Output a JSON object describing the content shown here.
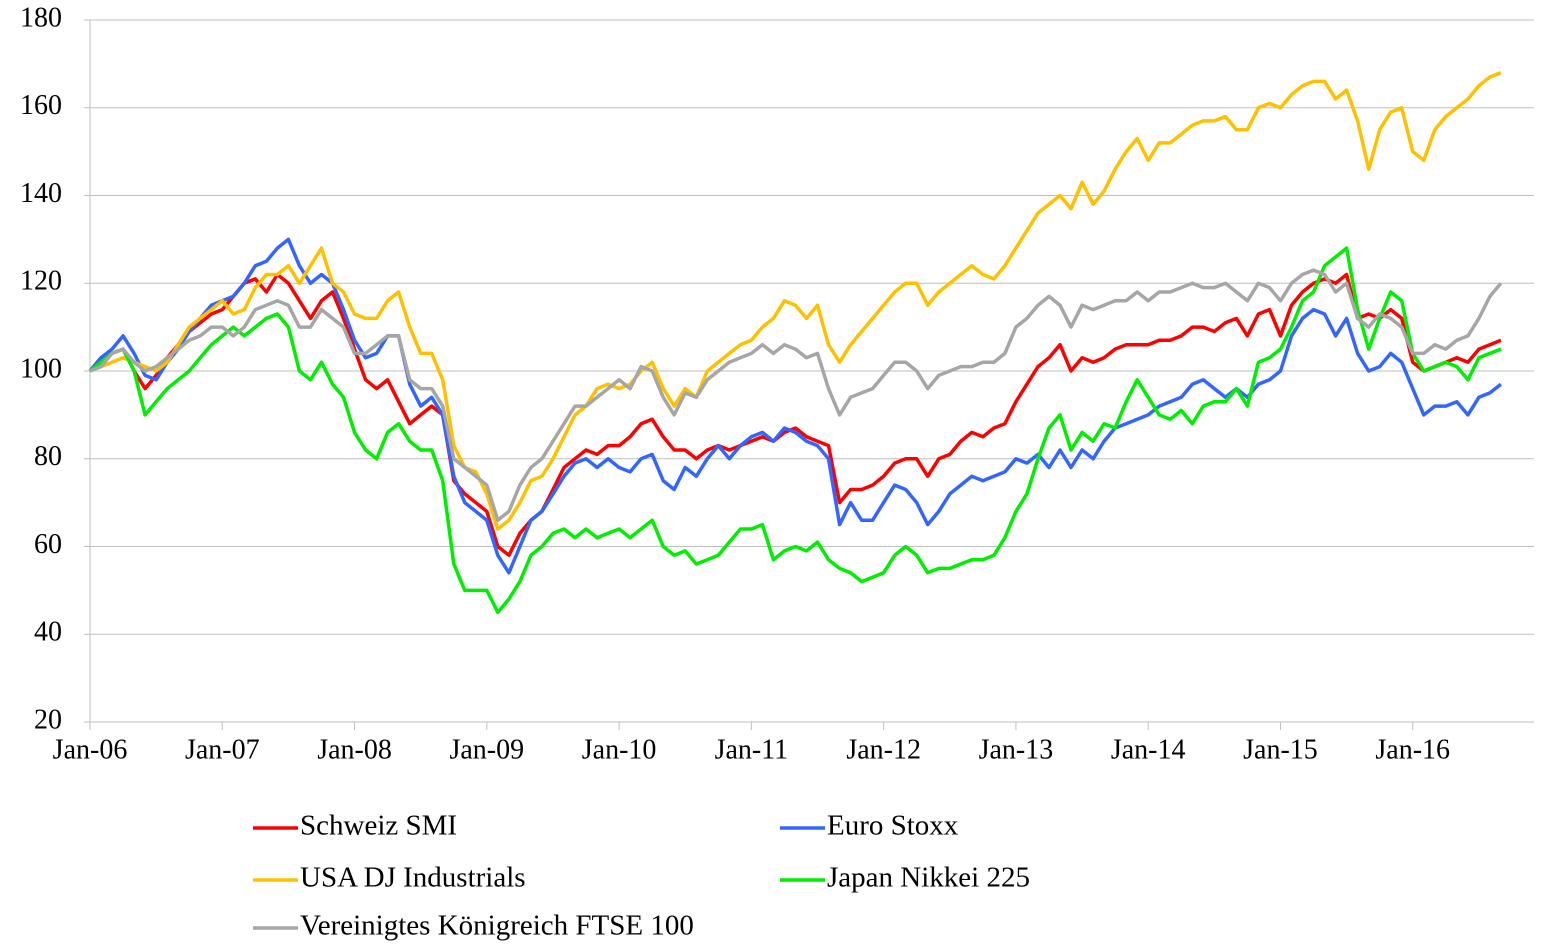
{
  "chart_data": {
    "type": "line",
    "x": [
      "2006-01",
      "2006-02",
      "2006-03",
      "2006-04",
      "2006-05",
      "2006-06",
      "2006-07",
      "2006-08",
      "2006-09",
      "2006-10",
      "2006-11",
      "2006-12",
      "2007-01",
      "2007-02",
      "2007-03",
      "2007-04",
      "2007-05",
      "2007-06",
      "2007-07",
      "2007-08",
      "2007-09",
      "2007-10",
      "2007-11",
      "2007-12",
      "2008-01",
      "2008-02",
      "2008-03",
      "2008-04",
      "2008-05",
      "2008-06",
      "2008-07",
      "2008-08",
      "2008-09",
      "2008-10",
      "2008-11",
      "2008-12",
      "2009-01",
      "2009-02",
      "2009-03",
      "2009-04",
      "2009-05",
      "2009-06",
      "2009-07",
      "2009-08",
      "2009-09",
      "2009-10",
      "2009-11",
      "2009-12",
      "2010-01",
      "2010-02",
      "2010-03",
      "2010-04",
      "2010-05",
      "2010-06",
      "2010-07",
      "2010-08",
      "2010-09",
      "2010-10",
      "2010-11",
      "2010-12",
      "2011-01",
      "2011-02",
      "2011-03",
      "2011-04",
      "2011-05",
      "2011-06",
      "2011-07",
      "2011-08",
      "2011-09",
      "2011-10",
      "2011-11",
      "2011-12",
      "2012-01",
      "2012-02",
      "2012-03",
      "2012-04",
      "2012-05",
      "2012-06",
      "2012-07",
      "2012-08",
      "2012-09",
      "2012-10",
      "2012-11",
      "2012-12",
      "2013-01",
      "2013-02",
      "2013-03",
      "2013-04",
      "2013-05",
      "2013-06",
      "2013-07",
      "2013-08",
      "2013-09",
      "2013-10",
      "2013-11",
      "2013-12",
      "2014-01",
      "2014-02",
      "2014-03",
      "2014-04",
      "2014-05",
      "2014-06",
      "2014-07",
      "2014-08",
      "2014-09",
      "2014-10",
      "2014-11",
      "2014-12",
      "2015-01",
      "2015-02",
      "2015-03",
      "2015-04",
      "2015-05",
      "2015-06",
      "2015-07",
      "2015-08",
      "2015-09",
      "2015-10",
      "2015-11",
      "2015-12",
      "2016-01",
      "2016-02",
      "2016-03",
      "2016-04",
      "2016-05",
      "2016-06",
      "2016-07",
      "2016-08",
      "2016-09"
    ],
    "series": [
      {
        "name": "Schweiz SMI",
        "color": "#ff0000",
        "values": [
          100,
          103,
          104,
          105,
          100,
          96,
          99,
          103,
          106,
          109,
          111,
          113,
          114,
          117,
          120,
          121,
          118,
          122,
          120,
          116,
          112,
          116,
          118,
          112,
          105,
          98,
          96,
          98,
          93,
          88,
          90,
          92,
          90,
          75,
          72,
          70,
          68,
          60,
          58,
          63,
          66,
          68,
          73,
          78,
          80,
          82,
          81,
          83,
          83,
          85,
          88,
          89,
          85,
          82,
          82,
          80,
          82,
          83,
          82,
          83,
          84,
          85,
          84,
          86,
          87,
          85,
          84,
          83,
          70,
          73,
          73,
          74,
          76,
          79,
          80,
          80,
          76,
          80,
          81,
          84,
          86,
          85,
          87,
          88,
          93,
          97,
          101,
          103,
          106,
          100,
          103,
          102,
          103,
          105,
          106,
          106,
          106,
          107,
          107,
          108,
          110,
          110,
          109,
          111,
          112,
          108,
          113,
          114,
          108,
          115,
          118,
          120,
          121,
          120,
          122,
          112,
          113,
          112,
          114,
          112,
          102,
          100,
          101,
          102,
          103,
          102,
          105,
          106,
          107
        ]
      },
      {
        "name": "Euro Stoxx",
        "color": "#3366ff",
        "values": [
          100,
          103,
          105,
          108,
          104,
          99,
          98,
          102,
          105,
          109,
          112,
          115,
          116,
          117,
          120,
          124,
          125,
          128,
          130,
          124,
          120,
          122,
          120,
          114,
          107,
          103,
          104,
          108,
          108,
          97,
          92,
          94,
          90,
          76,
          70,
          68,
          66,
          58,
          54,
          60,
          66,
          68,
          72,
          76,
          79,
          80,
          78,
          80,
          78,
          77,
          80,
          81,
          75,
          73,
          78,
          76,
          80,
          83,
          80,
          83,
          85,
          86,
          84,
          87,
          86,
          84,
          83,
          80,
          65,
          70,
          66,
          66,
          70,
          74,
          73,
          70,
          65,
          68,
          72,
          74,
          76,
          75,
          76,
          77,
          80,
          79,
          81,
          78,
          82,
          78,
          82,
          80,
          84,
          87,
          88,
          89,
          90,
          92,
          93,
          94,
          97,
          98,
          96,
          94,
          96,
          94,
          97,
          98,
          100,
          108,
          112,
          114,
          113,
          108,
          112,
          104,
          100,
          101,
          104,
          102,
          96,
          90,
          92,
          92,
          93,
          90,
          94,
          95,
          97
        ]
      },
      {
        "name": "USA DJ Industrials",
        "color": "#ffc000",
        "values": [
          100,
          101,
          102,
          103,
          102,
          101,
          100,
          102,
          106,
          110,
          112,
          114,
          116,
          113,
          114,
          119,
          122,
          122,
          124,
          120,
          124,
          128,
          120,
          118,
          113,
          112,
          112,
          116,
          118,
          110,
          104,
          104,
          98,
          83,
          78,
          77,
          72,
          64,
          66,
          70,
          75,
          76,
          80,
          85,
          90,
          92,
          96,
          97,
          96,
          97,
          100,
          102,
          96,
          92,
          96,
          94,
          100,
          102,
          104,
          106,
          107,
          110,
          112,
          116,
          115,
          112,
          115,
          106,
          102,
          106,
          109,
          112,
          115,
          118,
          120,
          120,
          115,
          118,
          120,
          122,
          124,
          122,
          121,
          124,
          128,
          132,
          136,
          138,
          140,
          137,
          143,
          138,
          141,
          146,
          150,
          153,
          148,
          152,
          152,
          154,
          156,
          157,
          157,
          158,
          155,
          155,
          160,
          161,
          160,
          163,
          165,
          166,
          166,
          162,
          164,
          157,
          146,
          155,
          159,
          160,
          150,
          148,
          155,
          158,
          160,
          162,
          165,
          167,
          168
        ]
      },
      {
        "name": "Japan Nikkei 225",
        "color": "#00ee00",
        "values": [
          100,
          102,
          104,
          105,
          100,
          90,
          93,
          96,
          98,
          100,
          103,
          106,
          108,
          110,
          108,
          110,
          112,
          113,
          110,
          100,
          98,
          102,
          97,
          94,
          86,
          82,
          80,
          86,
          88,
          84,
          82,
          82,
          75,
          56,
          50,
          50,
          50,
          45,
          48,
          52,
          58,
          60,
          63,
          64,
          62,
          64,
          62,
          63,
          64,
          62,
          64,
          66,
          60,
          58,
          59,
          56,
          57,
          58,
          61,
          64,
          64,
          65,
          57,
          59,
          60,
          59,
          61,
          57,
          55,
          54,
          52,
          53,
          54,
          58,
          60,
          58,
          54,
          55,
          55,
          56,
          57,
          57,
          58,
          62,
          68,
          72,
          80,
          87,
          90,
          82,
          86,
          84,
          88,
          87,
          93,
          98,
          94,
          90,
          89,
          91,
          88,
          92,
          93,
          93,
          96,
          92,
          102,
          103,
          105,
          110,
          116,
          118,
          124,
          126,
          128,
          114,
          105,
          112,
          118,
          116,
          104,
          100,
          101,
          102,
          101,
          98,
          103,
          104,
          105
        ]
      },
      {
        "name": "Vereinigtes Königreich FTSE 100",
        "color": "#a6a6a6",
        "values": [
          100,
          101,
          104,
          105,
          102,
          100,
          101,
          103,
          105,
          107,
          108,
          110,
          110,
          108,
          110,
          114,
          115,
          116,
          115,
          110,
          110,
          114,
          112,
          110,
          104,
          104,
          106,
          108,
          108,
          98,
          96,
          96,
          92,
          80,
          78,
          76,
          74,
          66,
          68,
          74,
          78,
          80,
          84,
          88,
          92,
          92,
          94,
          96,
          98,
          96,
          101,
          100,
          94,
          90,
          95,
          94,
          98,
          100,
          102,
          103,
          104,
          106,
          104,
          106,
          105,
          103,
          104,
          96,
          90,
          94,
          95,
          96,
          99,
          102,
          102,
          100,
          96,
          99,
          100,
          101,
          101,
          102,
          102,
          104,
          110,
          112,
          115,
          117,
          115,
          110,
          115,
          114,
          115,
          116,
          116,
          118,
          116,
          118,
          118,
          119,
          120,
          119,
          119,
          120,
          118,
          116,
          120,
          119,
          116,
          120,
          122,
          123,
          122,
          118,
          120,
          112,
          110,
          113,
          112,
          110,
          104,
          104,
          106,
          105,
          107,
          108,
          112,
          117,
          120
        ]
      }
    ],
    "xlim": [
      "2006-01",
      "2016-12"
    ],
    "xticks": [
      {
        "value": "2006-01",
        "label": "Jan-06"
      },
      {
        "value": "2007-01",
        "label": "Jan-07"
      },
      {
        "value": "2008-01",
        "label": "Jan-08"
      },
      {
        "value": "2009-01",
        "label": "Jan-09"
      },
      {
        "value": "2010-01",
        "label": "Jan-10"
      },
      {
        "value": "2011-01",
        "label": "Jan-11"
      },
      {
        "value": "2012-01",
        "label": "Jan-12"
      },
      {
        "value": "2013-01",
        "label": "Jan-13"
      },
      {
        "value": "2014-01",
        "label": "Jan-14"
      },
      {
        "value": "2015-01",
        "label": "Jan-15"
      },
      {
        "value": "2016-01",
        "label": "Jan-16"
      }
    ],
    "ylim": [
      20,
      180
    ],
    "yticks": [
      20,
      40,
      60,
      80,
      100,
      120,
      140,
      160,
      180
    ],
    "grid": true,
    "legend": "bottom"
  }
}
